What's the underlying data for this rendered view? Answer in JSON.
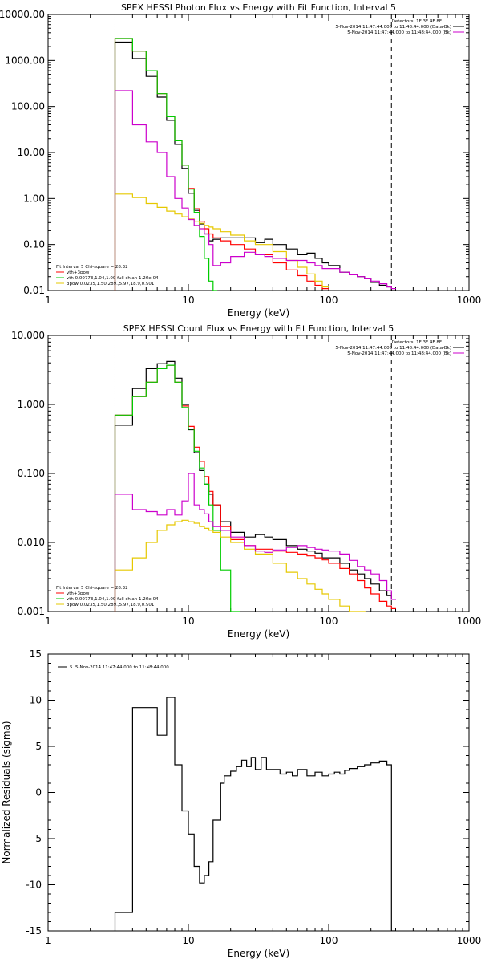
{
  "chart_data": [
    {
      "type": "line",
      "title": "SPEX HESSI Photon Flux vs Energy with Fit Function, Interval 5",
      "xlabel": "Energy (keV)",
      "ylabel": "",
      "xscale": "log",
      "yscale": "log",
      "xlim": [
        1,
        1000
      ],
      "ylim": [
        0.01,
        10000
      ],
      "xticks": [
        "1",
        "10",
        "100",
        "1000"
      ],
      "yticks": [
        "0.01",
        "0.10",
        "1.00",
        "10.00",
        "100.00",
        "1000.00",
        "10000.00"
      ],
      "grid": false,
      "legend_top": {
        "position": "top-right",
        "title": "Detectors: 1F 3F 4F 8F",
        "entries": [
          {
            "label": "5-Nov-2014 11:47:44.000 to 11:48:44.000 (Data-Bk)",
            "color": "#000000"
          },
          {
            "label": "5-Nov-2014 11:47:44.000 to 11:48:44.000 (Bk)",
            "color": "#cc00cc"
          }
        ]
      },
      "legend_bottom": {
        "position": "bottom-left",
        "title": "Fit Interval 5   Chi-square = 28.32",
        "entries": [
          {
            "label": "vth+3pow",
            "color": "#ff0000"
          },
          {
            "label": "vth 0.00773,1.04,1.00  full chian 1.26e-04",
            "color": "#00cc00"
          },
          {
            "label": "3pow 0.0235,1.50,289.,5.97,18.9,0.901",
            "color": "#e6c800"
          }
        ]
      },
      "vlines": [
        {
          "x": 3,
          "style": "dotted",
          "color": "#000000"
        },
        {
          "x": 280,
          "style": "dashed",
          "color": "#000000"
        }
      ],
      "series": [
        {
          "name": "5-Nov-2014 11:47:44.000 to 11:48:44.000 (Data-Bk)",
          "color": "#000000",
          "x": [
            3,
            4,
            5,
            6,
            7,
            8,
            9,
            10,
            11,
            12,
            13,
            14,
            15,
            17,
            20,
            25,
            30,
            35,
            40,
            50,
            60,
            70,
            80,
            90,
            100,
            120,
            140,
            160,
            180,
            200,
            230,
            260,
            280
          ],
          "y": [
            2500,
            1100,
            450,
            160,
            50,
            15,
            4.5,
            1.3,
            0.55,
            0.28,
            0.17,
            0.12,
            0.13,
            0.14,
            0.14,
            0.14,
            0.11,
            0.13,
            0.1,
            0.08,
            0.06,
            0.065,
            0.05,
            0.04,
            0.035,
            0.025,
            0.022,
            0.02,
            0.018,
            0.015,
            0.013,
            0.012,
            0.01
          ]
        },
        {
          "name": "vth+3pow",
          "color": "#ff0000",
          "x": [
            3,
            4,
            5,
            6,
            7,
            8,
            9,
            10,
            11,
            12,
            13,
            14,
            15,
            17,
            20,
            25,
            30,
            40,
            50,
            60,
            70,
            80,
            90
          ],
          "y": [
            3000,
            1600,
            600,
            190,
            60,
            18,
            5.3,
            1.65,
            0.6,
            0.32,
            0.22,
            0.17,
            0.14,
            0.12,
            0.1,
            0.08,
            0.06,
            0.04,
            0.028,
            0.021,
            0.016,
            0.013,
            0.011
          ]
        },
        {
          "name": "vth 0.00773,1.04,1.00  full chian 1.26e-04",
          "color": "#00cc00",
          "x": [
            3,
            4,
            5,
            6,
            7,
            8,
            9,
            10,
            11,
            12,
            13,
            14,
            15
          ],
          "y": [
            3000,
            1600,
            600,
            190,
            60,
            18,
            5.3,
            1.6,
            0.5,
            0.15,
            0.05,
            0.016,
            0.01
          ]
        },
        {
          "name": "3pow 0.0235,1.50,289.,5.97,18.9,0.901",
          "color": "#e6c800",
          "x": [
            3,
            4,
            5,
            6,
            7,
            8,
            9,
            10,
            11,
            12,
            13,
            14,
            15,
            17,
            20,
            25,
            30,
            40,
            50,
            60,
            70,
            80,
            90
          ],
          "y": [
            1.25,
            1.05,
            0.78,
            0.64,
            0.53,
            0.46,
            0.4,
            0.36,
            0.32,
            0.29,
            0.26,
            0.24,
            0.22,
            0.19,
            0.16,
            0.12,
            0.1,
            0.07,
            0.045,
            0.032,
            0.023,
            0.016,
            0.012
          ]
        },
        {
          "name": "5-Nov-2014 11:47:44.000 to 11:48:44.000 (Bk)",
          "color": "#cc00cc",
          "x": [
            3,
            4,
            5,
            6,
            7,
            8,
            9,
            10,
            11,
            12,
            13,
            14,
            15,
            17,
            20,
            25,
            30,
            35,
            40,
            50,
            60,
            70,
            80,
            90,
            100,
            120,
            140,
            160,
            180,
            200,
            230,
            260,
            280
          ],
          "y": [
            220,
            40,
            17,
            10,
            3,
            1,
            0.62,
            0.35,
            0.26,
            0.22,
            0.17,
            0.1,
            0.035,
            0.04,
            0.055,
            0.068,
            0.06,
            0.055,
            0.05,
            0.045,
            0.045,
            0.04,
            0.035,
            0.03,
            0.03,
            0.025,
            0.022,
            0.02,
            0.018,
            0.016,
            0.014,
            0.012,
            0.011
          ]
        }
      ]
    },
    {
      "type": "line",
      "title": "SPEX HESSI Count Flux vs Energy with Fit Function, Interval 5",
      "xlabel": "Energy (keV)",
      "ylabel": "",
      "xscale": "log",
      "yscale": "log",
      "xlim": [
        1,
        1000
      ],
      "ylim": [
        0.001,
        10
      ],
      "xticks": [
        "1",
        "10",
        "100",
        "1000"
      ],
      "yticks": [
        "0.001",
        "0.010",
        "0.100",
        "1.000",
        "10.000"
      ],
      "grid": false,
      "legend_top": {
        "position": "top-right",
        "title": "Detectors: 1F 3F 4F 8F",
        "entries": [
          {
            "label": "5-Nov-2014 11:47:44.000 to 11:48:44.000 (Data-Bk)",
            "color": "#000000"
          },
          {
            "label": "5-Nov-2014 11:47:44.000 to 11:48:44.000 (Bk)",
            "color": "#cc00cc"
          }
        ]
      },
      "legend_bottom": {
        "position": "bottom-left",
        "title": "Fit Interval 5   Chi-square = 28.32",
        "entries": [
          {
            "label": "vth+3pow",
            "color": "#ff0000"
          },
          {
            "label": "vth 0.00773,1.04,1.00  full chian 1.26e-04",
            "color": "#00cc00"
          },
          {
            "label": "3pow 0.0235,1.50,289.,5.97,18.9,0.901",
            "color": "#e6c800"
          }
        ]
      },
      "vlines": [
        {
          "x": 3,
          "style": "dotted",
          "color": "#000000"
        },
        {
          "x": 280,
          "style": "dashed",
          "color": "#000000"
        }
      ],
      "series": [
        {
          "name": "5-Nov-2014 11:47:44.000 to 11:48:44.000 (Data-Bk)",
          "color": "#000000",
          "x": [
            3,
            4,
            5,
            6,
            7,
            8,
            9,
            10,
            11,
            12,
            13,
            14,
            15,
            17,
            20,
            25,
            30,
            35,
            40,
            50,
            60,
            70,
            80,
            90,
            100,
            120,
            140,
            160,
            180,
            200,
            230,
            260,
            280
          ],
          "y": [
            0.5,
            1.7,
            3.3,
            3.9,
            4.2,
            2.4,
            1.0,
            0.43,
            0.2,
            0.11,
            0.07,
            0.05,
            0.035,
            0.02,
            0.014,
            0.012,
            0.013,
            0.012,
            0.011,
            0.009,
            0.008,
            0.0075,
            0.007,
            0.006,
            0.006,
            0.005,
            0.004,
            0.0035,
            0.003,
            0.0025,
            0.002,
            0.0017,
            0.0015
          ]
        },
        {
          "name": "vth+3pow",
          "color": "#ff0000",
          "x": [
            3,
            4,
            5,
            6,
            7,
            8,
            9,
            10,
            11,
            12,
            13,
            14,
            15,
            17,
            20,
            25,
            30,
            40,
            50,
            60,
            70,
            80,
            90,
            100,
            120,
            140,
            160,
            180,
            200,
            230,
            260,
            280
          ],
          "y": [
            0.7,
            1.3,
            2.1,
            3.3,
            3.7,
            2.1,
            0.95,
            0.48,
            0.24,
            0.15,
            0.09,
            0.055,
            0.035,
            0.017,
            0.011,
            0.009,
            0.008,
            0.0075,
            0.0072,
            0.0068,
            0.0064,
            0.006,
            0.0056,
            0.005,
            0.0042,
            0.0035,
            0.0028,
            0.0022,
            0.0018,
            0.0014,
            0.0012,
            0.0011
          ]
        },
        {
          "name": "vth 0.00773,1.04,1.00  full chian 1.26e-04",
          "color": "#00cc00",
          "x": [
            3,
            4,
            5,
            6,
            7,
            8,
            9,
            10,
            11,
            12,
            13,
            14,
            15,
            17,
            20
          ],
          "y": [
            0.7,
            1.3,
            2.1,
            3.3,
            3.7,
            2.1,
            0.9,
            0.44,
            0.21,
            0.12,
            0.07,
            0.035,
            0.015,
            0.004,
            0.001
          ]
        },
        {
          "name": "3pow 0.0235,1.50,289.,5.97,18.9,0.901",
          "color": "#e6c800",
          "x": [
            3,
            4,
            5,
            6,
            7,
            8,
            9,
            10,
            11,
            12,
            13,
            14,
            15,
            17,
            20,
            25,
            30,
            40,
            50,
            60,
            70,
            80,
            90,
            100,
            120,
            140,
            160
          ],
          "y": [
            0.004,
            0.006,
            0.01,
            0.015,
            0.018,
            0.02,
            0.021,
            0.02,
            0.019,
            0.017,
            0.016,
            0.015,
            0.014,
            0.012,
            0.01,
            0.008,
            0.0068,
            0.005,
            0.0037,
            0.003,
            0.0025,
            0.0021,
            0.0018,
            0.0015,
            0.0012,
            0.001,
            0.001
          ]
        },
        {
          "name": "5-Nov-2014 11:47:44.000 to 11:48:44.000 (Bk)",
          "color": "#cc00cc",
          "x": [
            3,
            4,
            5,
            6,
            7,
            8,
            9,
            10,
            11,
            12,
            13,
            14,
            15,
            17,
            20,
            25,
            30,
            35,
            40,
            50,
            60,
            70,
            80,
            90,
            100,
            120,
            140,
            160,
            180,
            200,
            230,
            260,
            280
          ],
          "y": [
            0.05,
            0.03,
            0.028,
            0.025,
            0.03,
            0.025,
            0.04,
            0.1,
            0.035,
            0.03,
            0.026,
            0.02,
            0.017,
            0.015,
            0.012,
            0.009,
            0.0075,
            0.0072,
            0.0078,
            0.0085,
            0.009,
            0.0085,
            0.008,
            0.0078,
            0.0075,
            0.0068,
            0.0055,
            0.0045,
            0.004,
            0.0035,
            0.0028,
            0.002,
            0.0015
          ]
        }
      ]
    },
    {
      "type": "line",
      "title": "",
      "xlabel": "Energy (keV)",
      "ylabel": "Normalized Residuals (sigma)",
      "xscale": "log",
      "yscale": "linear",
      "xlim": [
        1,
        1000
      ],
      "ylim": [
        -15,
        15
      ],
      "xticks": [
        "1",
        "10",
        "100",
        "1000"
      ],
      "yticks": [
        "-15",
        "-10",
        "-5",
        "0",
        "5",
        "10",
        "15"
      ],
      "grid": false,
      "legend_top": {
        "position": "top-left",
        "title": "",
        "entries": [
          {
            "label": "5. 5-Nov-2014 11:47:44.000 to 11:48:44.000",
            "color": "#000000"
          }
        ]
      },
      "series": [
        {
          "name": "5. 5-Nov-2014 11:47:44.000 to 11:48:44.000",
          "color": "#000000",
          "x": [
            3,
            4,
            5,
            6,
            7,
            8,
            9,
            10,
            11,
            12,
            13,
            14,
            15,
            17,
            18,
            20,
            22,
            24,
            26,
            28,
            30,
            33,
            36,
            40,
            45,
            50,
            55,
            60,
            70,
            80,
            90,
            100,
            110,
            120,
            130,
            140,
            160,
            180,
            200,
            230,
            260,
            280
          ],
          "y": [
            -13,
            9.2,
            9.2,
            6.2,
            10.3,
            3,
            -2,
            -4.5,
            -8,
            -9.8,
            -9,
            -7.5,
            -3,
            1,
            1.8,
            2.3,
            2.8,
            3.5,
            2.8,
            3.8,
            2.5,
            3.8,
            2.5,
            2.5,
            2.0,
            2.2,
            1.8,
            2.5,
            1.8,
            2.2,
            1.8,
            2.0,
            2.2,
            2.0,
            2.4,
            2.6,
            2.8,
            3.0,
            3.2,
            3.4,
            3.0,
            -15
          ]
        }
      ]
    }
  ]
}
